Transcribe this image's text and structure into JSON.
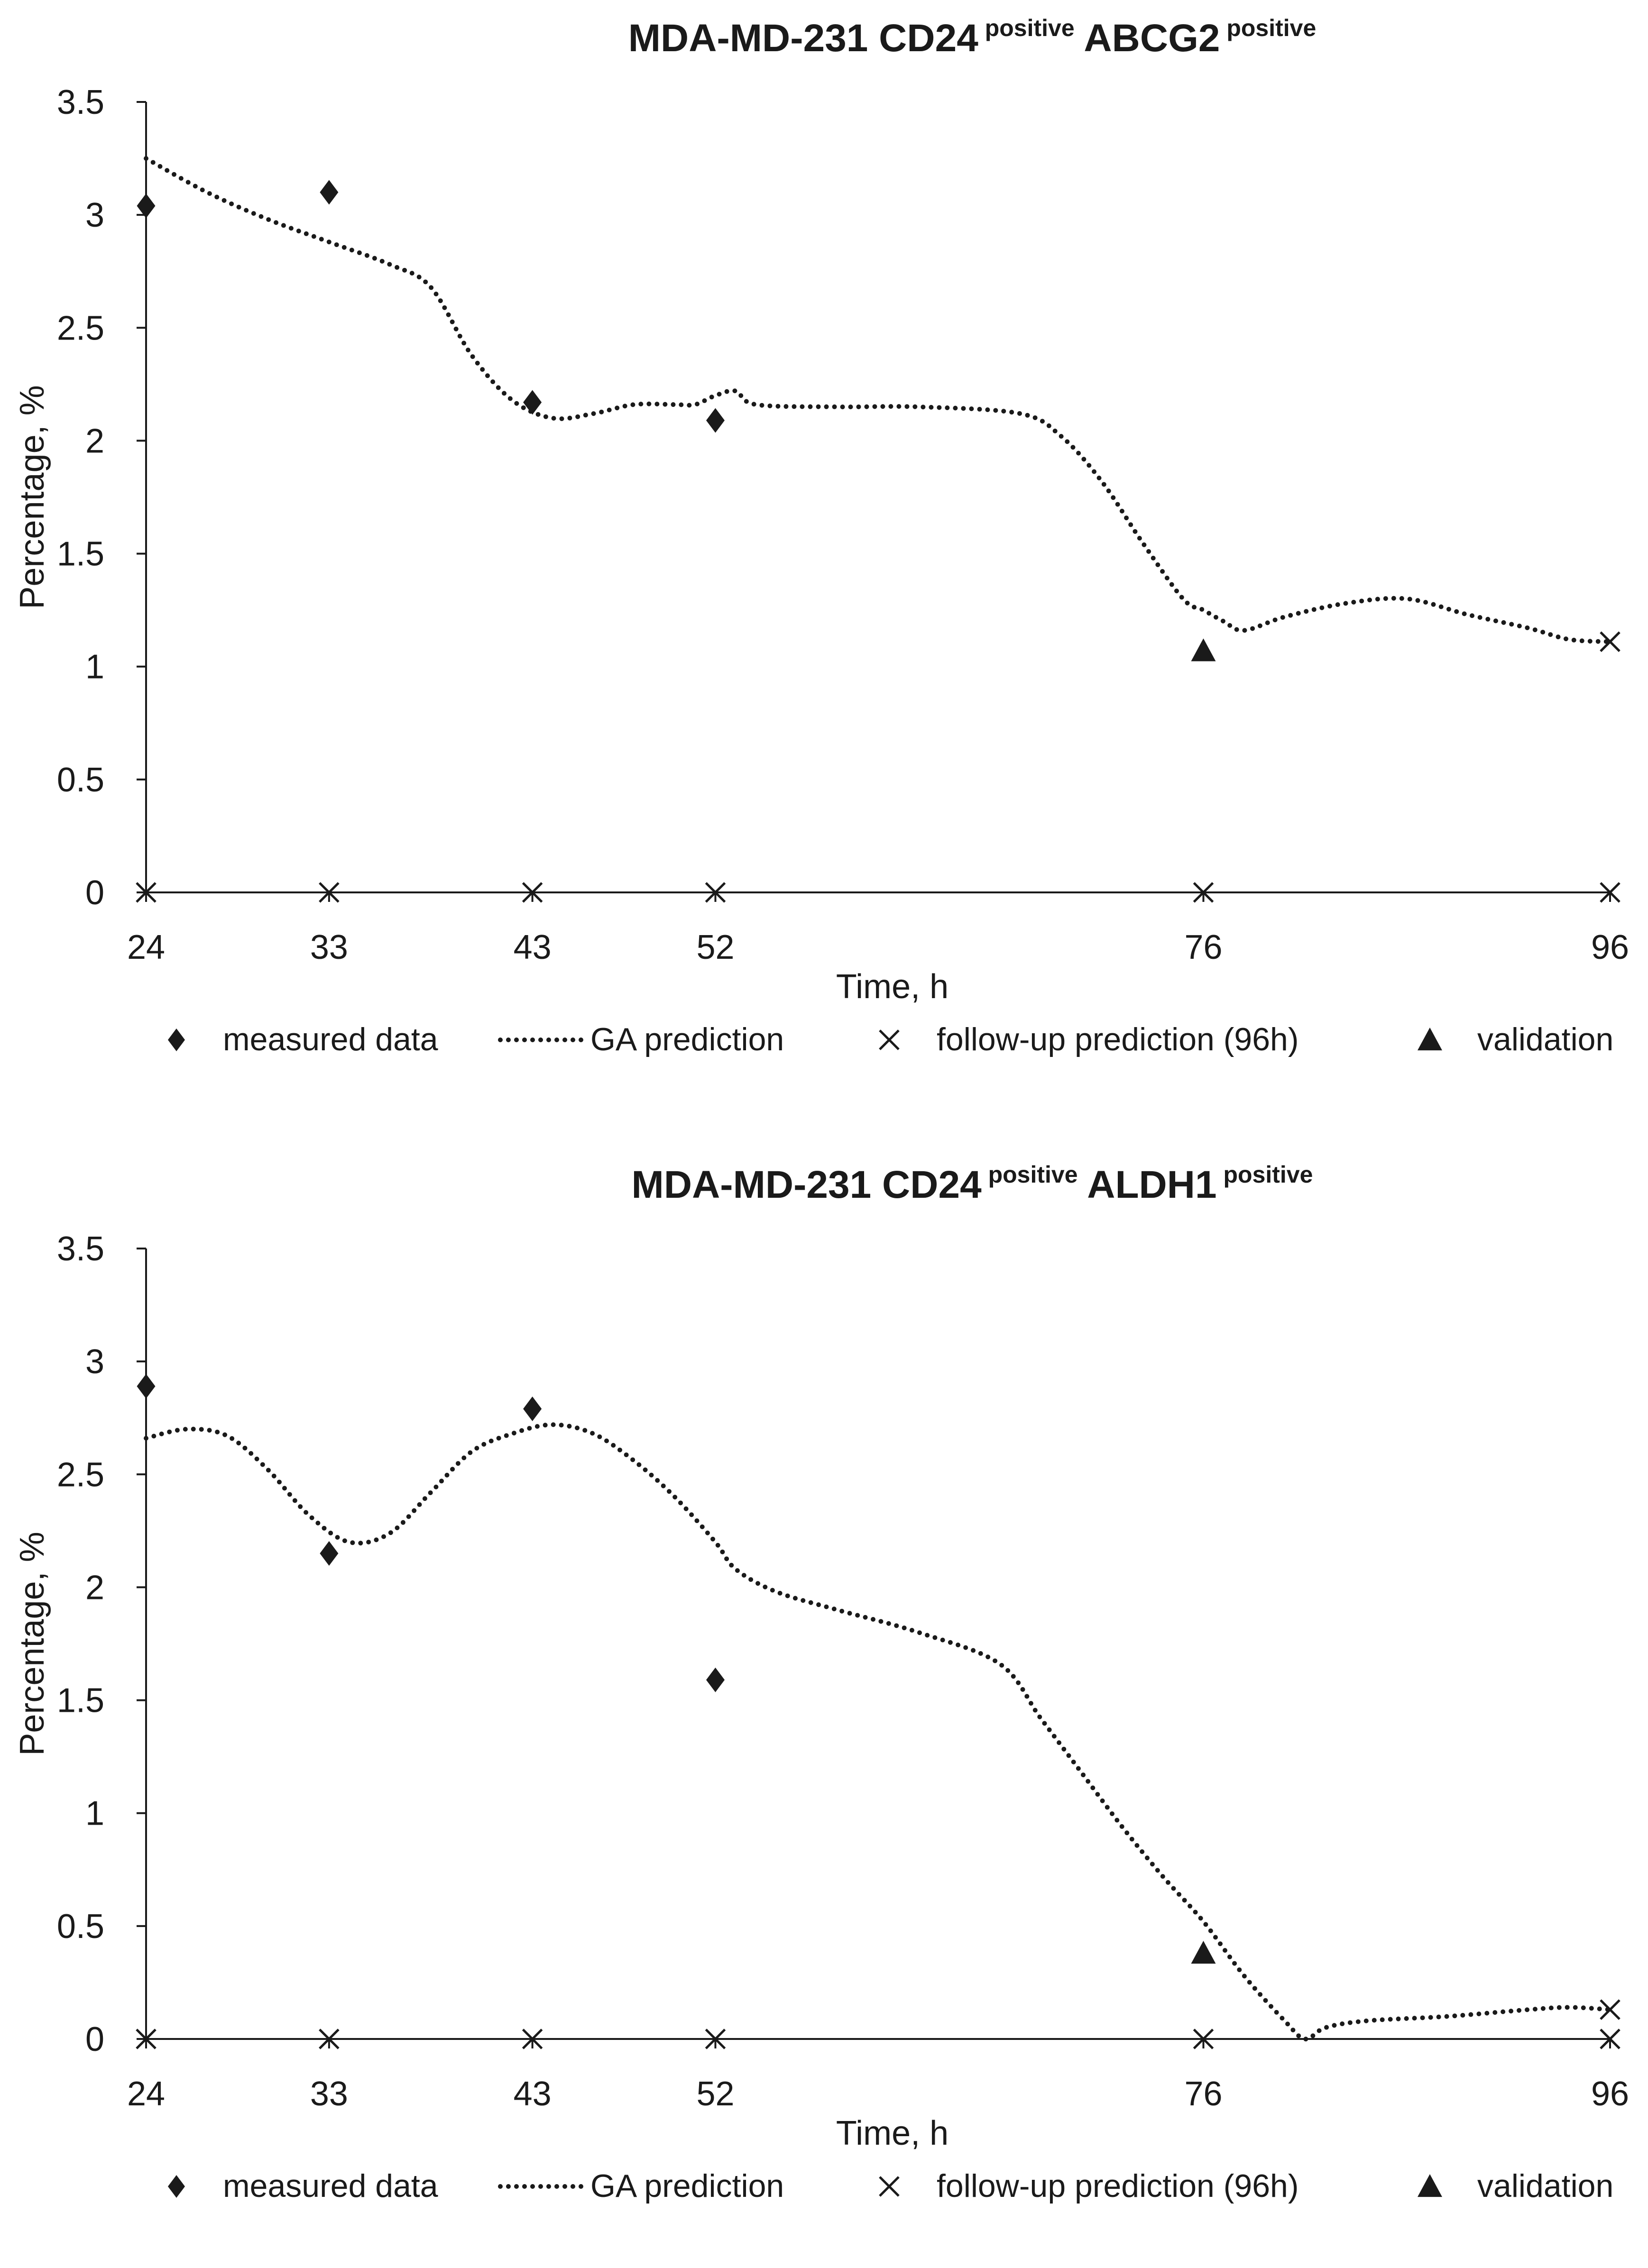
{
  "chart_data": [
    {
      "type": "line",
      "title": {
        "prefix": "MDA-MD-231 CD24",
        "sup1": "positive",
        "mid": "ABCG2",
        "sup2": "positive"
      },
      "xlabel": "Time, h",
      "ylabel": "Percentage,  %",
      "xlim": [
        24,
        96
      ],
      "ylim": [
        0,
        3.5
      ],
      "x_ticks": [
        24,
        33,
        43,
        52,
        76,
        96
      ],
      "y_ticks": [
        0,
        0.5,
        1,
        1.5,
        2,
        2.5,
        3,
        3.5
      ],
      "y_tick_labels": [
        "0",
        "0.5",
        "1",
        "1.5",
        "2",
        "2.5",
        "3",
        "3.5"
      ],
      "series": [
        {
          "name": "measured data",
          "marker": "diamond",
          "points": [
            [
              24,
              3.04
            ],
            [
              33,
              3.1
            ],
            [
              43,
              2.17
            ],
            [
              52,
              2.09
            ]
          ]
        },
        {
          "name": "GA prediction",
          "style": "dotted-line",
          "points": [
            [
              24,
              3.25
            ],
            [
              27,
              3.1
            ],
            [
              30,
              2.98
            ],
            [
              33,
              2.88
            ],
            [
              36,
              2.78
            ],
            [
              38,
              2.68
            ],
            [
              40,
              2.38
            ],
            [
              42,
              2.18
            ],
            [
              44,
              2.1
            ],
            [
              46,
              2.12
            ],
            [
              48,
              2.16
            ],
            [
              50,
              2.16
            ],
            [
              51,
              2.16
            ],
            [
              52,
              2.2
            ],
            [
              53,
              2.22
            ],
            [
              54,
              2.16
            ],
            [
              58,
              2.15
            ],
            [
              62,
              2.15
            ],
            [
              67,
              2.12
            ],
            [
              69,
              2.02
            ],
            [
              71,
              1.82
            ],
            [
              73,
              1.55
            ],
            [
              75,
              1.3
            ],
            [
              76,
              1.25
            ],
            [
              77,
              1.2
            ],
            [
              78,
              1.16
            ],
            [
              80,
              1.22
            ],
            [
              83,
              1.28
            ],
            [
              86,
              1.3
            ],
            [
              89,
              1.23
            ],
            [
              92,
              1.17
            ],
            [
              94,
              1.12
            ],
            [
              96,
              1.11
            ]
          ]
        },
        {
          "name": "follow-up prediction (96h)",
          "marker": "x",
          "points": [
            [
              24,
              0
            ],
            [
              33,
              0
            ],
            [
              43,
              0
            ],
            [
              52,
              0
            ],
            [
              76,
              0
            ],
            [
              96,
              0
            ],
            [
              96,
              1.11
            ]
          ]
        },
        {
          "name": "validation",
          "marker": "triangle",
          "points": [
            [
              76,
              1.07
            ]
          ]
        }
      ],
      "legend": {
        "position": "bottom",
        "items": [
          "measured data",
          "GA prediction",
          "follow-up prediction (96h)",
          "validation"
        ]
      }
    },
    {
      "type": "line",
      "title": {
        "prefix": "MDA-MD-231 CD24",
        "sup1": "positive",
        "mid": "ALDH1",
        "sup2": "positive"
      },
      "xlabel": "Time, h",
      "ylabel": "Percentage,  %",
      "xlim": [
        24,
        96
      ],
      "ylim": [
        0,
        3.5
      ],
      "x_ticks": [
        24,
        33,
        43,
        52,
        76,
        96
      ],
      "y_ticks": [
        0,
        0.5,
        1,
        1.5,
        2,
        2.5,
        3,
        3.5
      ],
      "y_tick_labels": [
        "0",
        "0.5",
        "1",
        "1.5",
        "2",
        "2.5",
        "3",
        "3.5"
      ],
      "series": [
        {
          "name": "measured data",
          "marker": "diamond",
          "points": [
            [
              24,
              2.89
            ],
            [
              33,
              2.15
            ],
            [
              43,
              2.79
            ],
            [
              52,
              1.59
            ]
          ]
        },
        {
          "name": "GA prediction",
          "style": "dotted-line",
          "points": [
            [
              24,
              2.66
            ],
            [
              26,
              2.7
            ],
            [
              28,
              2.67
            ],
            [
              30,
              2.52
            ],
            [
              32,
              2.32
            ],
            [
              34,
              2.2
            ],
            [
              36,
              2.24
            ],
            [
              38,
              2.42
            ],
            [
              40,
              2.6
            ],
            [
              42,
              2.68
            ],
            [
              44,
              2.72
            ],
            [
              46,
              2.68
            ],
            [
              48,
              2.56
            ],
            [
              50,
              2.4
            ],
            [
              52,
              2.2
            ],
            [
              53,
              2.08
            ],
            [
              55,
              1.98
            ],
            [
              58,
              1.9
            ],
            [
              62,
              1.8
            ],
            [
              66,
              1.66
            ],
            [
              68,
              1.42
            ],
            [
              70,
              1.18
            ],
            [
              72,
              0.94
            ],
            [
              74,
              0.72
            ],
            [
              76,
              0.52
            ],
            [
              78,
              0.28
            ],
            [
              80,
              0.08
            ],
            [
              81,
              0.0
            ],
            [
              82,
              0.05
            ],
            [
              84,
              0.08
            ],
            [
              88,
              0.1
            ],
            [
              92,
              0.13
            ],
            [
              94,
              0.14
            ],
            [
              96,
              0.13
            ]
          ]
        },
        {
          "name": "follow-up prediction (96h)",
          "marker": "x",
          "points": [
            [
              24,
              0
            ],
            [
              33,
              0
            ],
            [
              43,
              0
            ],
            [
              52,
              0
            ],
            [
              76,
              0
            ],
            [
              96,
              0
            ],
            [
              96,
              0.13
            ]
          ]
        },
        {
          "name": "validation",
          "marker": "triangle",
          "points": [
            [
              76,
              0.38
            ]
          ]
        }
      ],
      "legend": {
        "position": "bottom",
        "items": [
          "measured data",
          "GA prediction",
          "follow-up prediction (96h)",
          "validation"
        ]
      }
    }
  ]
}
